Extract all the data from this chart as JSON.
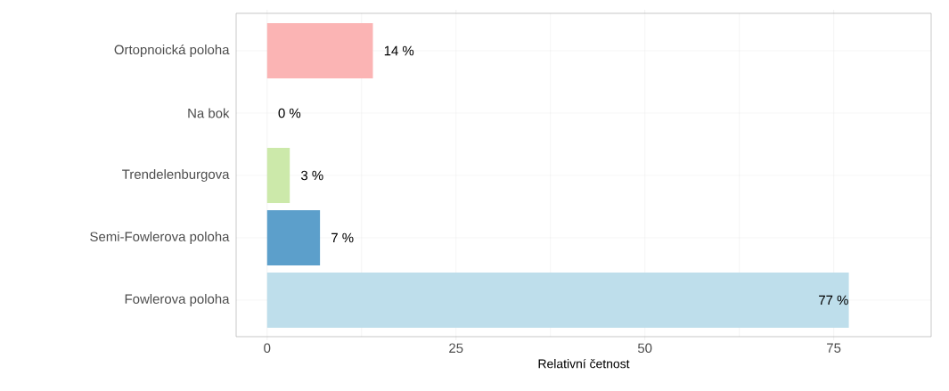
{
  "chart_data": {
    "type": "bar",
    "orientation": "horizontal",
    "categories": [
      "Ortopnoická poloha",
      "Na bok",
      "Trendelenburgova",
      "Semi-Fowlerova poloha",
      "Fowlerova poloha"
    ],
    "values": [
      14,
      0,
      3,
      7,
      77
    ],
    "colors": [
      "#fbb4b4",
      "#70bd6b",
      "#cce9aa",
      "#5c9fcb",
      "#bedeeb"
    ],
    "value_labels": [
      "14 %",
      "0 %",
      "3 %",
      "7 %",
      "77 %"
    ],
    "xlabel": "Relativní četnost",
    "xlim": [
      -4.1,
      87.9
    ],
    "xticks": [
      0,
      25,
      50,
      75
    ],
    "grid": true
  }
}
